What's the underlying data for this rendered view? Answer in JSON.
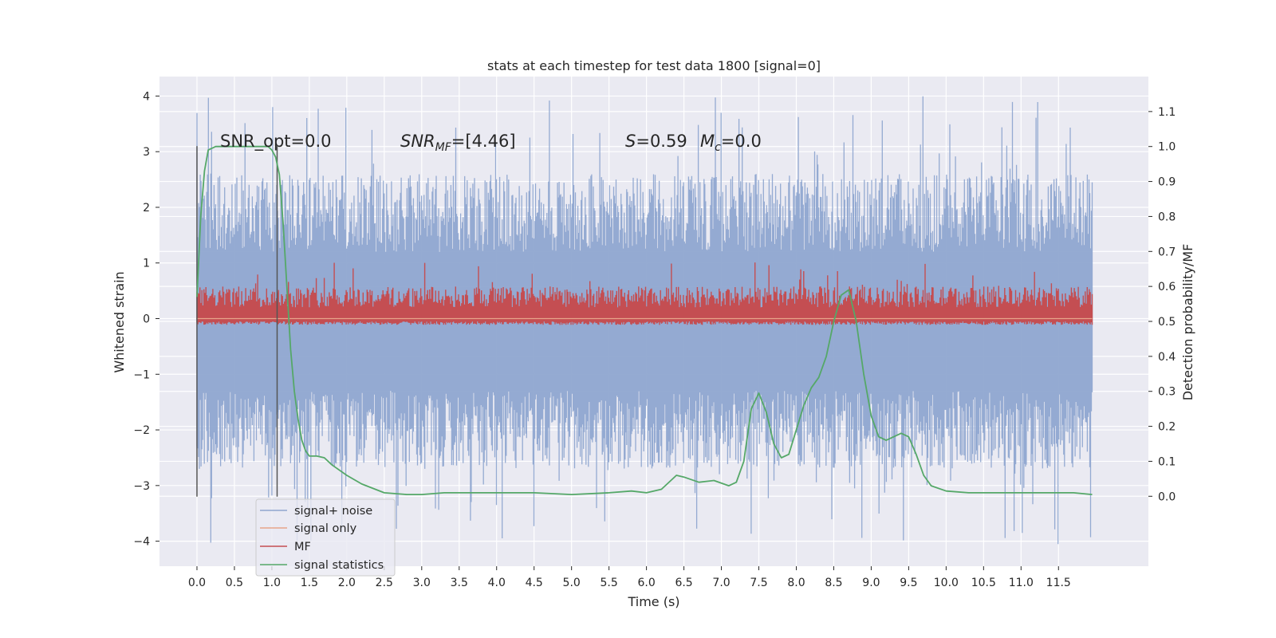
{
  "chart_data": {
    "type": "line",
    "title": "stats at each timestep for test data 1800 [signal=0]",
    "xlabel": "Time (s)",
    "ylabel": "Whitened strain",
    "y2label": "Detection probability/MF",
    "xlim": [
      -0.5,
      12.7
    ],
    "ylim": [
      -4.45,
      4.35
    ],
    "y2lim": [
      -0.2,
      1.2
    ],
    "x_ticks": [
      0.0,
      0.5,
      1.0,
      1.5,
      2.0,
      2.5,
      3.0,
      3.5,
      4.0,
      4.5,
      5.0,
      5.5,
      6.0,
      6.5,
      7.0,
      7.5,
      8.0,
      8.5,
      9.0,
      9.5,
      10.0,
      10.5,
      11.0,
      11.5
    ],
    "x_tick_labels": [
      "0.0",
      "0.5",
      "1.0",
      "1.5",
      "2.0",
      "2.5",
      "3.0",
      "3.5",
      "4.0",
      "4.5",
      "5.0",
      "5.5",
      "6.0",
      "6.5",
      "7.0",
      "7.5",
      "8.0",
      "8.5",
      "9.0",
      "9.5",
      "10.0",
      "10.5",
      "11.0",
      "11.5"
    ],
    "y_ticks": [
      -4,
      -3,
      -2,
      -1,
      0,
      1,
      2,
      3,
      4
    ],
    "y_tick_labels": [
      "−4",
      "−3",
      "−2",
      "−1",
      "0",
      "1",
      "2",
      "3",
      "4"
    ],
    "y2_ticks": [
      0.0,
      0.1,
      0.2,
      0.3,
      0.4,
      0.5,
      0.6,
      0.7,
      0.8,
      0.9,
      1.0,
      1.1
    ],
    "y2_tick_labels": [
      "0.0",
      "0.1",
      "0.2",
      "0.3",
      "0.4",
      "0.5",
      "0.6",
      "0.7",
      "0.8",
      "0.9",
      "1.0",
      "1.1"
    ],
    "grid": true,
    "legend_position": "bottom-left",
    "annotations": {
      "snr_opt": "SNR_opt=0.0",
      "snr_mf_italic": "SNR",
      "snr_mf_sub": "MF",
      "snr_mf_rest": "=[4.46]",
      "s_italic": "S",
      "s_rest": "=0.59",
      "mc_italic": "M",
      "mc_sub": "c",
      "mc_rest": "=0.0"
    },
    "vertical_markers": [
      0.0,
      1.07
    ],
    "vertical_marker_range": [
      -3.2,
      3.1
    ],
    "series": [
      {
        "name": "signal+ noise",
        "color": "#8fa6d0",
        "axis": "left",
        "x_range": [
          0.0,
          11.95
        ],
        "envelope_top": 1.2,
        "envelope_bottom": -1.3,
        "spike_high": 4.0,
        "spike_low": -4.1
      },
      {
        "name": "signal only",
        "color": "#e8a58a",
        "axis": "left",
        "x_range": [
          0.0,
          11.95
        ],
        "value": 0.0
      },
      {
        "name": "MF",
        "color": "#c44e52",
        "axis": "right",
        "x_range": [
          0.0,
          11.95
        ],
        "base": 0.5,
        "band_top": 0.58,
        "spike_high": 0.67
      },
      {
        "name": "signal statistics",
        "color": "#55a868",
        "axis": "right",
        "x": [
          0.0,
          0.05,
          0.1,
          0.15,
          0.25,
          0.4,
          0.6,
          0.8,
          0.95,
          1.0,
          1.05,
          1.1,
          1.15,
          1.2,
          1.25,
          1.3,
          1.35,
          1.4,
          1.45,
          1.5,
          1.6,
          1.7,
          1.8,
          2.0,
          2.2,
          2.5,
          2.8,
          3.0,
          3.3,
          3.5,
          4.0,
          4.5,
          5.0,
          5.5,
          5.8,
          6.0,
          6.2,
          6.4,
          6.5,
          6.7,
          6.9,
          7.1,
          7.2,
          7.3,
          7.4,
          7.5,
          7.6,
          7.7,
          7.8,
          7.9,
          8.0,
          8.1,
          8.2,
          8.3,
          8.4,
          8.5,
          8.6,
          8.7,
          8.8,
          8.9,
          9.0,
          9.1,
          9.2,
          9.3,
          9.4,
          9.5,
          9.6,
          9.7,
          9.8,
          10.0,
          10.3,
          10.6,
          11.0,
          11.3,
          11.5,
          11.7,
          11.95
        ],
        "values": [
          0.57,
          0.8,
          0.93,
          0.99,
          1.0,
          1.0,
          1.0,
          1.0,
          1.0,
          0.99,
          0.97,
          0.92,
          0.78,
          0.6,
          0.42,
          0.3,
          0.22,
          0.16,
          0.13,
          0.115,
          0.115,
          0.11,
          0.09,
          0.06,
          0.035,
          0.01,
          0.005,
          0.005,
          0.01,
          0.01,
          0.01,
          0.01,
          0.005,
          0.01,
          0.015,
          0.01,
          0.02,
          0.06,
          0.055,
          0.04,
          0.045,
          0.03,
          0.04,
          0.1,
          0.25,
          0.295,
          0.24,
          0.15,
          0.11,
          0.12,
          0.19,
          0.26,
          0.31,
          0.34,
          0.4,
          0.5,
          0.575,
          0.59,
          0.5,
          0.35,
          0.23,
          0.17,
          0.16,
          0.17,
          0.18,
          0.17,
          0.12,
          0.06,
          0.03,
          0.015,
          0.01,
          0.01,
          0.01,
          0.01,
          0.01,
          0.01,
          0.005
        ]
      }
    ]
  }
}
